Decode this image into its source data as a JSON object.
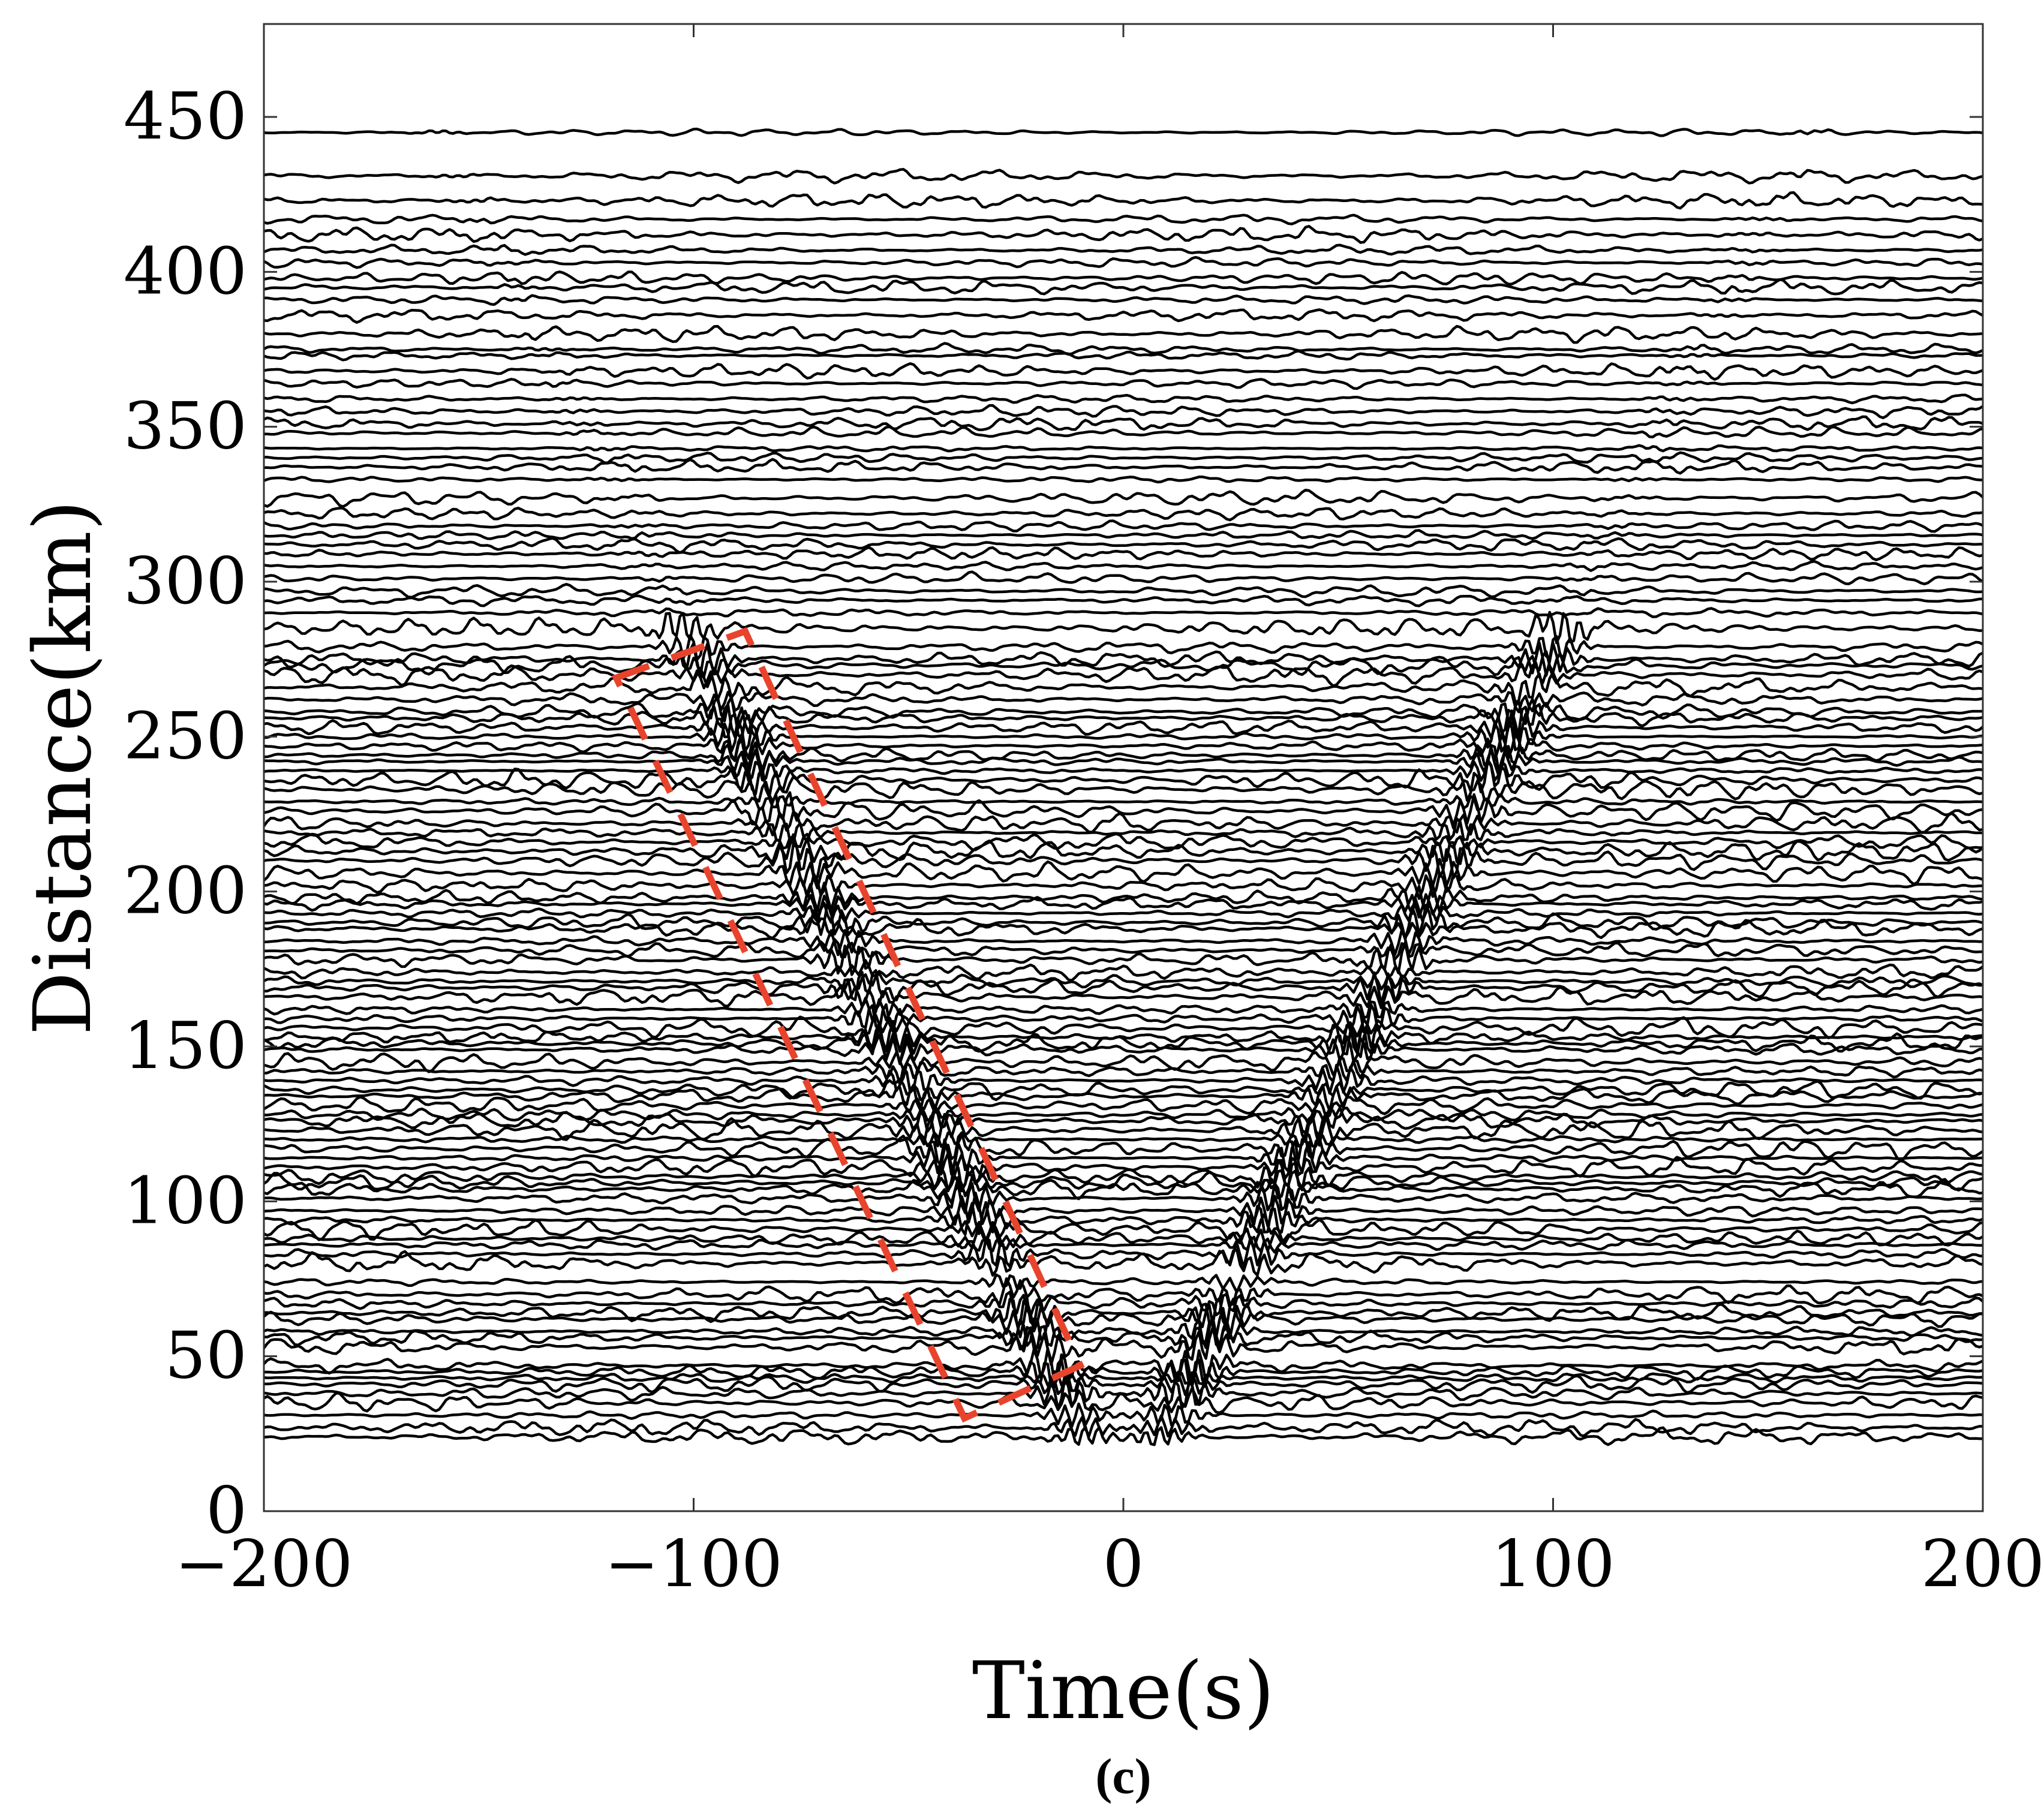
{
  "chart_data": {
    "type": "line",
    "subtype": "seismic record section (noise cross-correlation traces)",
    "xlabel": "Time(s)",
    "ylabel": "Distance(km)",
    "xlim": [
      -200,
      200
    ],
    "ylim": [
      0,
      480
    ],
    "xticks": [
      -200,
      -100,
      0,
      100,
      200
    ],
    "xtick_labels": [
      "−200",
      "−100",
      "0",
      "100",
      "200"
    ],
    "yticks": [
      0,
      50,
      100,
      150,
      200,
      250,
      300,
      350,
      400,
      450
    ],
    "ytick_labels": [
      "0",
      "50",
      "100",
      "150",
      "200",
      "250",
      "300",
      "350",
      "400",
      "450"
    ],
    "grid": false,
    "trace_color": "#000000",
    "trace_distances_km": [
      24,
      27,
      31,
      35,
      38,
      41,
      43,
      45,
      47,
      53,
      56,
      58,
      62,
      64,
      67,
      70,
      74,
      80,
      83,
      86,
      88,
      91,
      94,
      97,
      101,
      104,
      106,
      108,
      111,
      114,
      117,
      120,
      123,
      126,
      128,
      131,
      134,
      136,
      139,
      142,
      145,
      149,
      151,
      153,
      156,
      159,
      162,
      166,
      169,
      171,
      174,
      178,
      181,
      184,
      188,
      190,
      193,
      196,
      198,
      202,
      206,
      210,
      213,
      216,
      219,
      222,
      226,
      229,
      233,
      236,
      239,
      242,
      244,
      247,
      250,
      253,
      256,
      258,
      262,
      266,
      270,
      273,
      275,
      279,
      285,
      290,
      294,
      297,
      301,
      305,
      309,
      312,
      315,
      318,
      322,
      327,
      333,
      337,
      340,
      343,
      348,
      351,
      355,
      359,
      364,
      368,
      373,
      375,
      380,
      386,
      391,
      395,
      398,
      403,
      407,
      412,
      417,
      423,
      431,
      445
    ],
    "annotation": {
      "shape": "dashed rectangle (rotated)",
      "color": "#e8442d",
      "corners_data": [
        [
          -118,
          269
        ],
        [
          -88,
          284
        ],
        [
          -10,
          47
        ],
        [
          -37,
          30
        ]
      ]
    }
  },
  "caption": "(c)"
}
